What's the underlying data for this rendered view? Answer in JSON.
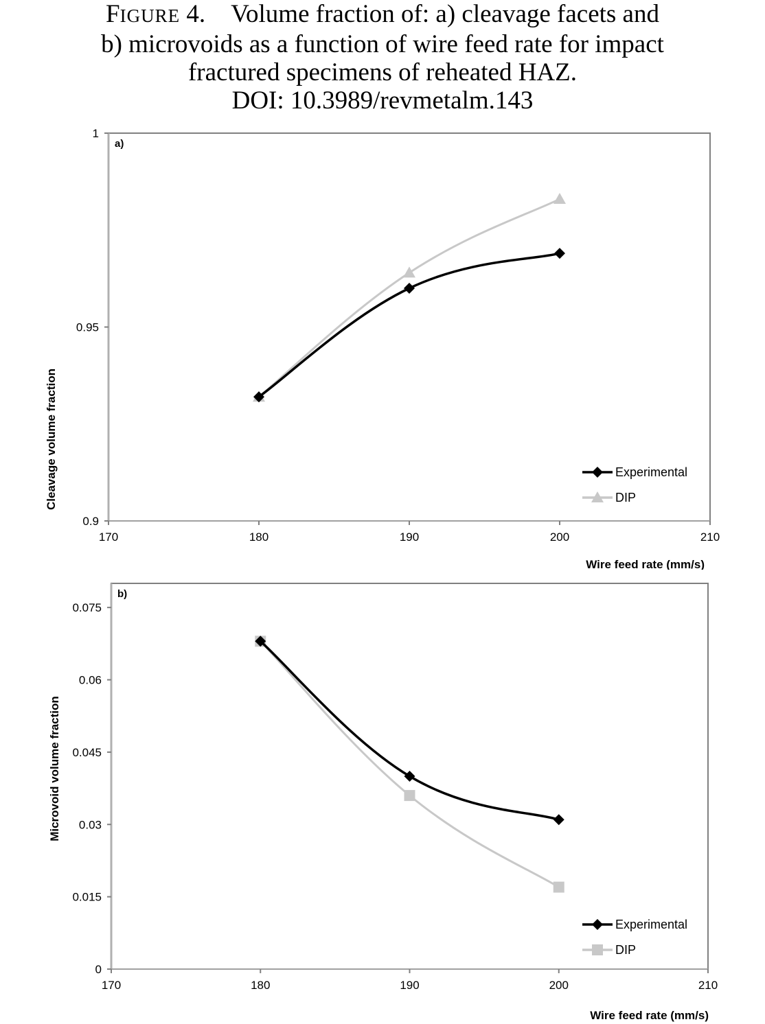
{
  "caption": {
    "figure_label_initial": "F",
    "figure_label_rest": "IGURE",
    "figure_number": " 4.",
    "line1_text": "Volume fraction of: a) cleavage facets and",
    "line2": "b) microvoids as a function of wire feed rate for impact",
    "line3": "fractured specimens of reheated HAZ.",
    "line4": "DOI: 10.3989/revmetalm.143"
  },
  "colors": {
    "experimental": "#000000",
    "dip": "#c8c8c8",
    "axis": "#808080"
  },
  "chart_data": [
    {
      "type": "line",
      "panel_label": "a)",
      "xlabel": "Wire feed rate (mm/s)",
      "ylabel": "Cleavage volume fraction",
      "xlim": [
        170,
        210
      ],
      "ylim": [
        0.9,
        1
      ],
      "x_ticks": [
        "170",
        "180",
        "190",
        "200",
        "210"
      ],
      "y_ticks": [
        "0.9",
        "0.95",
        "1"
      ],
      "x": [
        180,
        190,
        200
      ],
      "series": [
        {
          "name": "Experimental",
          "marker": "diamond",
          "values": [
            0.932,
            0.96,
            0.969
          ]
        },
        {
          "name": "DIP",
          "marker": "triangle",
          "values": [
            0.932,
            0.964,
            0.983
          ]
        }
      ],
      "legend": "bottom-right",
      "grid": false,
      "smooth": true
    },
    {
      "type": "line",
      "panel_label": "b)",
      "xlabel": "Wire feed rate (mm/s)",
      "ylabel": "Microvoid volume fraction",
      "xlim": [
        170,
        210
      ],
      "ylim": [
        0,
        0.08
      ],
      "x_ticks": [
        "170",
        "180",
        "190",
        "200",
        "210"
      ],
      "y_ticks": [
        "0",
        "0.015",
        "0.03",
        "0.045",
        "0.06",
        "0.075"
      ],
      "x": [
        180,
        190,
        200
      ],
      "series": [
        {
          "name": "Experimental",
          "marker": "diamond",
          "values": [
            0.068,
            0.04,
            0.031
          ]
        },
        {
          "name": "DIP",
          "marker": "square",
          "values": [
            0.068,
            0.036,
            0.017
          ]
        }
      ],
      "legend": "bottom-right",
      "grid": false,
      "smooth": true
    }
  ]
}
